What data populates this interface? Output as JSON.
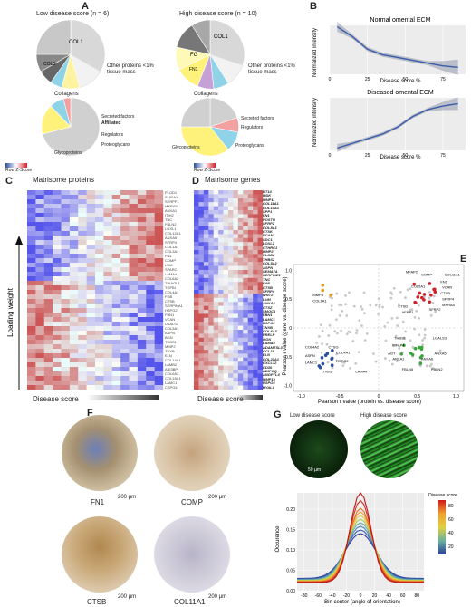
{
  "panels": {
    "A": {
      "letter": "A",
      "low_title": "Low disease score (n = 6)",
      "high_title": "High disease score (n = 10)",
      "other_label": "Other proteins <1% tissue mass",
      "top_low_labels": [
        "COL1",
        "COL6",
        "FBN1",
        "LAMC1",
        "DCN",
        "FN1",
        "LAMB2"
      ],
      "top_high_labels": [
        "COL1",
        "COL6",
        "FG",
        "FN1",
        "COL5",
        "POSTN",
        "COL4"
      ],
      "bottom_labels": [
        "Collagens",
        "Secreted factors",
        "Affiliated",
        "Regulators",
        "Proteoglycans",
        "Glycoproteins"
      ]
    },
    "B": {
      "letter": "B",
      "plot1_title": "Normal omental ECM",
      "plot2_title": "Diseased omental ECM",
      "xlabel": "Disease score %",
      "ylabel": "Normalized intensity",
      "x_ticks": [
        "0",
        "25",
        "50",
        "75"
      ]
    },
    "C": {
      "letter": "C",
      "title": "Matrisome proteins",
      "ylabel": "Loading weight",
      "xlabel": "Disease score",
      "legend_title": "Row Z-Score",
      "genes": [
        "PLOD1",
        "S100A1",
        "SERPF1",
        "MXRA5",
        "ANXA1",
        "ITIH2",
        "TNC",
        "FBLN2",
        "LOXL1",
        "COL12A1",
        "ANXA5",
        "SFRP4",
        "COL1A1",
        "COL3A1",
        "FN1",
        "COMP",
        "LUM",
        "SPARC",
        "LAMA4",
        "COL6A2",
        "TINAGL1",
        "TGFBI",
        "COL4A1",
        "FGB",
        "CTSB",
        "SERPINA1",
        "HSPG2",
        "FBN1",
        "VCAN",
        "LGALS3",
        "COL5A1",
        "ASPN",
        "BGN",
        "THBS1",
        "MMP2",
        "TNXB",
        "ELN",
        "COL14A1",
        "LAMB2",
        "ABI3BP",
        "COL6A3",
        "COL15A1",
        "LAMC1",
        "CSPG4"
      ]
    },
    "D": {
      "letter": "D",
      "title": "Matrisome genes",
      "xlabel": "Disease score",
      "legend_title": "Row Z-Score",
      "genes": [
        "BT14",
        "MDK",
        "MMP11",
        "COL11A1",
        "COL10A1",
        "SPP1",
        "FN1",
        "POSTN",
        "SFRP2",
        "COL8A1",
        "CTSK",
        "VCAN",
        "SDC1",
        "LOXL2",
        "CTHRC1",
        "MMP2",
        "PLOD2",
        "THBS2",
        "COL5A2",
        "ASPN",
        "SEMA7A",
        "SERPINE1",
        "TNC",
        "FAP",
        "CTSB",
        "SFRP4",
        "WNT2",
        "LUM",
        "ANXA5",
        "CTSZ",
        "SMOC1",
        "FBN1",
        "LAMC1",
        "HSPG2",
        "TNXB",
        "COL6A3",
        "PRELP",
        "OGN",
        "LAMA4",
        "ADAMTSL3",
        "CCL21",
        "ELN",
        "COL21A1",
        "CXCL12",
        "CD36",
        "ADIPOQ",
        "ANGPTL4",
        "MMP19",
        "RSPO3",
        "HYAL1"
      ]
    },
    "E": {
      "letter": "E",
      "xlabel": "Pearson r value (protein vs. disease score)",
      "ylabel": "Pearson r value (gene vs. disease score)",
      "ticks": [
        "-1.0",
        "-0.5",
        "0",
        "0.5",
        "1.0"
      ],
      "labels": [
        "MMP8",
        "COL1A1",
        "MFAP2",
        "COMP",
        "COL11A1",
        "FN1",
        "VCAN",
        "CTSB",
        "SFRP4",
        "MXRA5",
        "SFRP2",
        "COL5A1",
        "CTSD",
        "AEBP1",
        "COL4A2",
        "CTSG",
        "COL4A1",
        "ASPN",
        "LAMC1",
        "HSPG2",
        "TNXB",
        "LAMA4",
        "THBS1",
        "LGALS3",
        "MFAP4",
        "AGT",
        "ANXA1",
        "ANXA5",
        "ANXA6",
        "FBLN5",
        "FBLN2"
      ]
    },
    "F": {
      "letter": "F",
      "labels": [
        "FN1",
        "COMP",
        "CTSB",
        "COL11A1"
      ],
      "scale": "200 µm"
    },
    "G": {
      "letter": "G",
      "low_label": "Low disease score",
      "high_label": "High disease score",
      "scale": "50 µm",
      "xlabel": "Bin center (angle of orientation)",
      "ylabel": "Occurence",
      "legend_title": "Disease score",
      "legend_ticks": [
        "80",
        "60",
        "40",
        "20"
      ],
      "x_ticks": [
        "-80",
        "-60",
        "-40",
        "-20",
        "0",
        "20",
        "40",
        "60",
        "80"
      ],
      "y_ticks": [
        "0.00",
        "0.05",
        "0.10",
        "0.15",
        "0.20"
      ]
    }
  },
  "chart_data": [
    {
      "type": "line",
      "title": "Normal omental ECM",
      "xlabel": "Disease score %",
      "ylabel": "Normalized intensity",
      "x": [
        5,
        15,
        25,
        35,
        45,
        55,
        65,
        75,
        85
      ],
      "values": [
        0.34,
        0.27,
        0.18,
        0.14,
        0.12,
        0.1,
        0.08,
        0.06,
        0.05
      ],
      "xlim": [
        0,
        90
      ],
      "ylim": [
        0,
        0.35
      ]
    },
    {
      "type": "line",
      "title": "Diseased omental ECM",
      "xlabel": "Disease score %",
      "ylabel": "Normalized intensity",
      "x": [
        5,
        15,
        25,
        35,
        45,
        55,
        65,
        75,
        85
      ],
      "values": [
        0.02,
        0.06,
        0.1,
        0.14,
        0.2,
        0.29,
        0.35,
        0.38,
        0.4
      ],
      "xlim": [
        0,
        90
      ],
      "ylim": [
        0,
        0.45
      ]
    }
  ]
}
